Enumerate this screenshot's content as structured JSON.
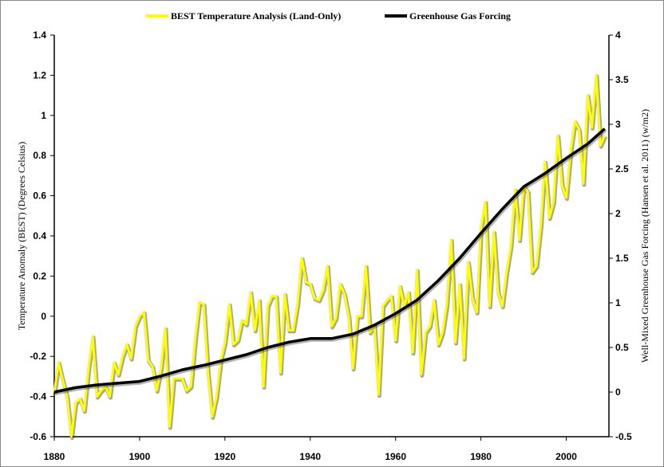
{
  "chart_data": {
    "type": "line",
    "title": "",
    "xlabel": "",
    "ylabel": "Temperature Anomaly (BEST)  (Degrees Celsius)",
    "y2label": "Well-Mixed  Greenhouse Gas Forcing (Hansen et al. 2011)  (w/m2)",
    "xlim": [
      1880,
      2010
    ],
    "ylim": [
      -0.6,
      1.4
    ],
    "y2lim": [
      -0.5,
      4
    ],
    "x_ticks": [
      "1880",
      "1900",
      "1920",
      "1940",
      "1960",
      "1980",
      "2000"
    ],
    "y_ticks": [
      "-0.6",
      "-0.4",
      "-0.2",
      "0",
      "0.2",
      "0.4",
      "0.6",
      "0.8",
      "1",
      "1.2",
      "1.4"
    ],
    "y2_ticks": [
      "-0.5",
      "0",
      "0.5",
      "1",
      "1.5",
      "2",
      "2.5",
      "3",
      "3.5",
      "4"
    ],
    "grid": false,
    "legend_position": "top",
    "series": [
      {
        "name": "BEST Temperature Analysis (Land-Only)",
        "axis": "left",
        "color": "#ffff00",
        "x_start": 1880,
        "values": [
          -0.38,
          -0.23,
          -0.32,
          -0.4,
          -0.6,
          -0.43,
          -0.41,
          -0.47,
          -0.26,
          -0.1,
          -0.4,
          -0.37,
          -0.35,
          -0.4,
          -0.23,
          -0.29,
          -0.2,
          -0.14,
          -0.21,
          -0.05,
          0.0,
          0.02,
          -0.22,
          -0.25,
          -0.37,
          -0.26,
          -0.06,
          -0.55,
          -0.31,
          -0.31,
          -0.31,
          -0.37,
          -0.35,
          -0.12,
          0.07,
          0.06,
          -0.28,
          -0.5,
          -0.4,
          -0.22,
          -0.13,
          0.06,
          -0.14,
          -0.12,
          -0.02,
          -0.04,
          0.12,
          -0.07,
          0.08,
          -0.35,
          0.05,
          0.1,
          0.1,
          -0.28,
          0.11,
          -0.07,
          -0.07,
          0.06,
          0.29,
          0.17,
          0.16,
          0.09,
          0.08,
          0.13,
          0.25,
          -0.05,
          -0.01,
          0.16,
          0.11,
          0.0,
          -0.26,
          0.0,
          0.0,
          0.25,
          -0.08,
          -0.04,
          -0.39,
          0.05,
          0.08,
          0.1,
          -0.12,
          0.15,
          0.05,
          0.12,
          -0.18,
          0.23,
          -0.29,
          -0.08,
          -0.05,
          0.08,
          -0.14,
          -0.08,
          0.06,
          0.38,
          -0.13,
          0.16,
          -0.21,
          0.27,
          0.09,
          0.02,
          0.44,
          0.57,
          0.05,
          0.42,
          0.12,
          0.05,
          0.22,
          0.35,
          0.63,
          0.38,
          0.65,
          0.62,
          0.22,
          0.25,
          0.45,
          0.77,
          0.49,
          0.57,
          0.9,
          0.65,
          0.59,
          0.82,
          0.97,
          0.93,
          0.66,
          1.1,
          0.94,
          1.2,
          0.85,
          0.9
        ]
      },
      {
        "name": "Greenhouse Gas Forcing",
        "axis": "right",
        "color": "#000000",
        "x": [
          1880,
          1885,
          1890,
          1895,
          1900,
          1905,
          1910,
          1915,
          1920,
          1925,
          1930,
          1935,
          1940,
          1945,
          1950,
          1955,
          1960,
          1965,
          1970,
          1975,
          1980,
          1985,
          1990,
          1995,
          2000,
          2005,
          2009
        ],
        "values": [
          0.0,
          0.05,
          0.08,
          0.1,
          0.12,
          0.18,
          0.25,
          0.3,
          0.36,
          0.42,
          0.5,
          0.56,
          0.6,
          0.6,
          0.65,
          0.75,
          0.88,
          1.03,
          1.25,
          1.5,
          1.78,
          2.05,
          2.3,
          2.45,
          2.62,
          2.78,
          2.95
        ]
      }
    ]
  }
}
